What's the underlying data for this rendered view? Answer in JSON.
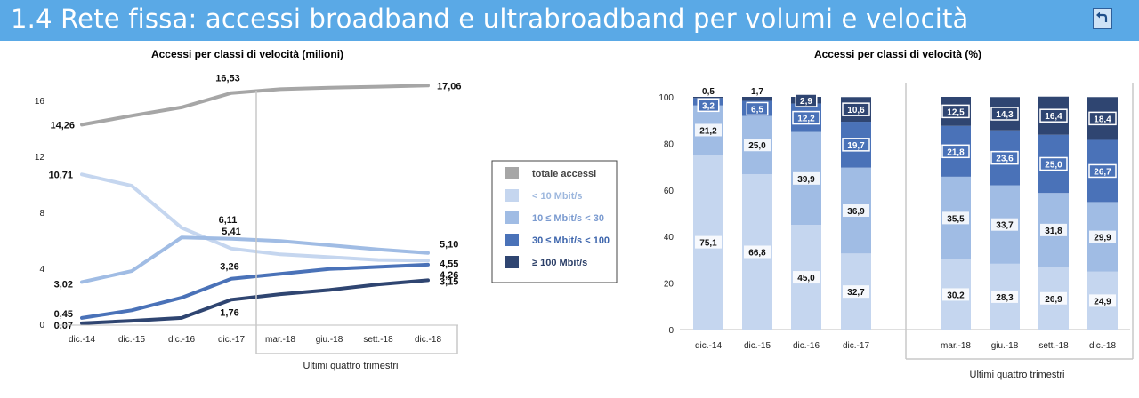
{
  "header": {
    "title": "1.4 Rete fissa: accessi broadband e ultrabroadband per volumi e velocità"
  },
  "colors": {
    "header_bg": "#5aa9e6",
    "total": "#a6a6a6",
    "lt10": "#c5d6ef",
    "r10_30": "#a0bce4",
    "r30_100": "#4a72b8",
    "ge100": "#2f4571"
  },
  "chart_data": [
    {
      "type": "line",
      "title": "Accessi per classi di velocità (milioni)",
      "categories": [
        "dic.-14",
        "dic.-15",
        "dic.-16",
        "dic.-17",
        "mar.-18",
        "giu.-18",
        "sett.-18",
        "dic.-18"
      ],
      "group_label": "Ultimi quattro trimestri",
      "yticks": [
        "0",
        "4",
        "8",
        "12",
        "16"
      ],
      "ylim": [
        0,
        18.5
      ],
      "legend": [
        "totale accessi",
        "< 10 Mbit/s",
        "10 ≤ Mbit/s  < 30",
        "30 ≤ Mbit/s < 100",
        "≥ 100 Mbit/s"
      ],
      "series": [
        {
          "name": "totale accessi",
          "values": [
            14.26,
            14.9,
            15.5,
            16.53,
            16.8,
            16.9,
            16.98,
            17.06
          ]
        },
        {
          "name": "< 10 Mbit/s",
          "values": [
            10.71,
            9.9,
            6.9,
            5.41,
            5.0,
            4.8,
            4.6,
            4.55
          ]
        },
        {
          "name": "10 ≤ Mbit/s  < 30",
          "values": [
            3.02,
            3.8,
            6.2,
            6.11,
            5.95,
            5.65,
            5.35,
            5.1
          ]
        },
        {
          "name": "30 ≤ Mbit/s < 100",
          "values": [
            0.45,
            1.0,
            1.9,
            3.26,
            3.6,
            3.95,
            4.1,
            4.26
          ]
        },
        {
          "name": "≥ 100 Mbit/s",
          "values": [
            0.07,
            0.25,
            0.45,
            1.76,
            2.15,
            2.45,
            2.85,
            3.15
          ]
        }
      ],
      "labels": {
        "total": [
          "14,26",
          "16,53",
          "17,06"
        ],
        "lt10": [
          "10,71",
          "5,41",
          "4,55"
        ],
        "r10_30": [
          "3,02",
          "6,11",
          "5,10"
        ],
        "r30_100": [
          "0,45",
          "3,26",
          "4,26"
        ],
        "ge100": [
          "0,07",
          "1,76",
          "3,15"
        ]
      }
    },
    {
      "type": "bar",
      "stacked": true,
      "title": "Accessi per classi di velocità (%)",
      "categories": [
        "dic.-14",
        "dic.-15",
        "dic.-16",
        "dic.-17",
        "mar.-18",
        "giu.-18",
        "sett.-18",
        "dic.-18"
      ],
      "group_label": "Ultimi quattro trimestri",
      "yticks": [
        "0",
        "20",
        "40",
        "60",
        "80",
        "100"
      ],
      "ylim": [
        0,
        100
      ],
      "series": [
        {
          "name": "< 10 Mbit/s",
          "values": [
            75.1,
            66.8,
            45.0,
            32.7,
            30.2,
            28.3,
            26.9,
            24.9
          ],
          "labels": [
            "75,1",
            "66,8",
            "45,0",
            "32,7",
            "30,2",
            "28,3",
            "26,9",
            "24,9"
          ]
        },
        {
          "name": "10 ≤ Mbit/s  < 30",
          "values": [
            21.2,
            25.0,
            39.9,
            36.9,
            35.5,
            33.7,
            31.8,
            29.9
          ],
          "labels": [
            "21,2",
            "25,0",
            "39,9",
            "36,9",
            "35,5",
            "33,7",
            "31,8",
            "29,9"
          ]
        },
        {
          "name": "30 ≤ Mbit/s < 100",
          "values": [
            3.2,
            6.5,
            12.2,
            19.7,
            21.8,
            23.6,
            25.0,
            26.7
          ],
          "labels": [
            "3,2",
            "6,5",
            "12,2",
            "19,7",
            "21,8",
            "23,6",
            "25,0",
            "26,7"
          ]
        },
        {
          "name": "≥ 100 Mbit/s",
          "values": [
            0.5,
            1.7,
            2.9,
            10.6,
            12.5,
            14.3,
            16.4,
            18.4
          ],
          "labels": [
            "0,5",
            "1,7",
            "2,9",
            "10,6",
            "12,5",
            "14,3",
            "16,4",
            "18,4"
          ]
        }
      ]
    }
  ]
}
